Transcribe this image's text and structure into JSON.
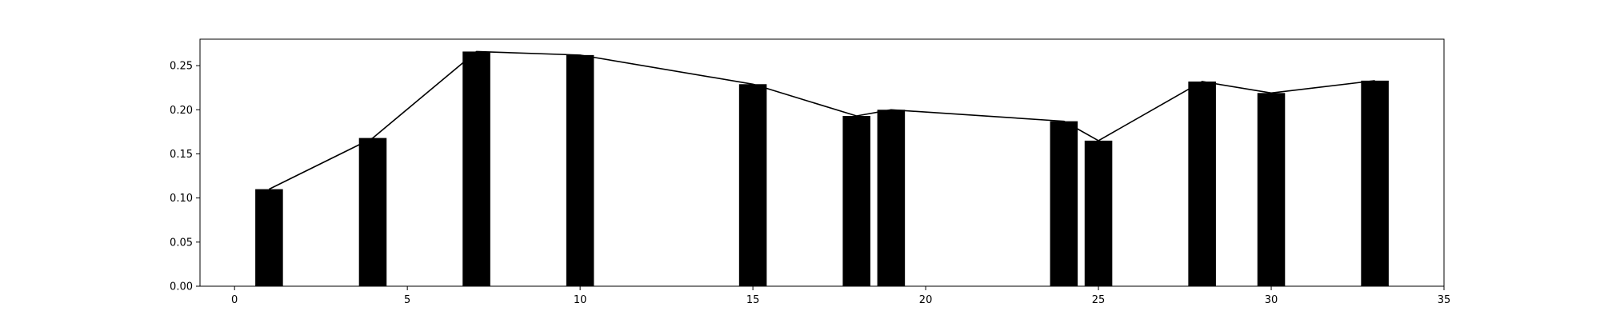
{
  "chart_data": {
    "type": "bar",
    "title": "",
    "xlabel": "",
    "ylabel": "",
    "xlim": [
      -1,
      35
    ],
    "ylim": [
      0,
      0.28
    ],
    "grid": false,
    "x_ticks": [
      0,
      5,
      10,
      15,
      20,
      25,
      30,
      35
    ],
    "x_tick_labels": [
      "0",
      "5",
      "10",
      "15",
      "20",
      "25",
      "30",
      "35"
    ],
    "y_ticks": [
      0.0,
      0.05,
      0.1,
      0.15,
      0.2,
      0.25
    ],
    "y_tick_labels": [
      "0.00",
      "0.05",
      "0.10",
      "0.15",
      "0.20",
      "0.25"
    ],
    "bar_color": "#000000",
    "line_color": "#000000",
    "bar_width": 0.8,
    "series": [
      {
        "type": "bar",
        "x": [
          1,
          4,
          7,
          10,
          15,
          18,
          19,
          24,
          25,
          28,
          30,
          33
        ],
        "values": [
          0.11,
          0.168,
          0.266,
          0.262,
          0.229,
          0.193,
          0.2,
          0.187,
          0.165,
          0.232,
          0.219,
          0.233
        ]
      },
      {
        "type": "line",
        "x": [
          1,
          4,
          7,
          10,
          15,
          18,
          19,
          24,
          25,
          28,
          30,
          33
        ],
        "values": [
          0.11,
          0.168,
          0.266,
          0.262,
          0.229,
          0.193,
          0.2,
          0.187,
          0.165,
          0.232,
          0.219,
          0.233
        ]
      }
    ]
  }
}
